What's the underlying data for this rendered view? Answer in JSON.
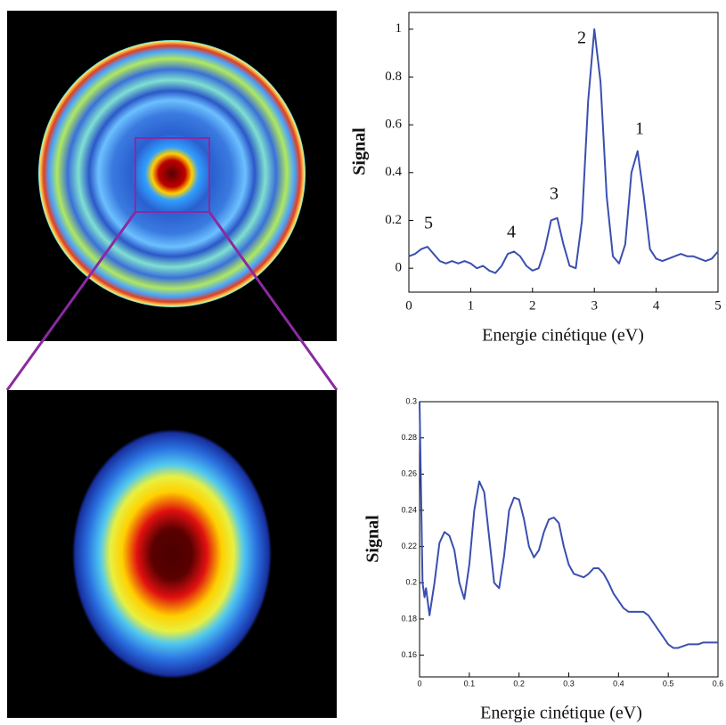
{
  "chart_data": [
    {
      "type": "line",
      "xlabel": "Energie cinétique (eV)",
      "ylabel": "Signal",
      "annotations": [
        "5",
        "4",
        "3",
        "2",
        "1"
      ],
      "x": [
        0,
        0.1,
        0.2,
        0.3,
        0.4,
        0.5,
        0.6,
        0.7,
        0.8,
        0.9,
        1.0,
        1.1,
        1.2,
        1.3,
        1.4,
        1.5,
        1.6,
        1.7,
        1.8,
        1.9,
        2.0,
        2.1,
        2.2,
        2.3,
        2.4,
        2.5,
        2.6,
        2.7,
        2.8,
        2.9,
        3.0,
        3.1,
        3.2,
        3.3,
        3.4,
        3.5,
        3.6,
        3.7,
        3.8,
        3.9,
        4.0,
        4.1,
        4.2,
        4.3,
        4.4,
        4.5,
        4.6,
        4.7,
        4.8,
        4.9,
        5.0
      ],
      "values": [
        0.05,
        0.06,
        0.08,
        0.09,
        0.06,
        0.03,
        0.02,
        0.03,
        0.02,
        0.03,
        0.02,
        0.0,
        0.01,
        -0.01,
        -0.02,
        0.01,
        0.06,
        0.07,
        0.05,
        0.01,
        -0.01,
        0.0,
        0.08,
        0.2,
        0.21,
        0.1,
        0.01,
        0.0,
        0.2,
        0.7,
        1.0,
        0.78,
        0.3,
        0.05,
        0.02,
        0.1,
        0.4,
        0.49,
        0.3,
        0.08,
        0.04,
        0.03,
        0.04,
        0.05,
        0.06,
        0.05,
        0.05,
        0.04,
        0.03,
        0.04,
        0.07
      ],
      "color": "#3a4fb0",
      "xlim": [
        0,
        5
      ],
      "xticks": [
        0,
        1,
        2,
        3,
        4,
        5
      ],
      "ylim": [
        -0.1,
        1.07
      ],
      "yticks": [
        0,
        0.2,
        0.4,
        0.6,
        0.8,
        1
      ]
    },
    {
      "type": "line",
      "xlabel": "Energie cinétique (eV)",
      "ylabel": "Signal",
      "x": [
        0,
        0.003,
        0.006,
        0.01,
        0.013,
        0.02,
        0.03,
        0.04,
        0.05,
        0.06,
        0.07,
        0.08,
        0.09,
        0.1,
        0.11,
        0.12,
        0.13,
        0.14,
        0.15,
        0.16,
        0.17,
        0.18,
        0.19,
        0.2,
        0.21,
        0.22,
        0.23,
        0.24,
        0.25,
        0.26,
        0.27,
        0.28,
        0.29,
        0.3,
        0.31,
        0.32,
        0.33,
        0.34,
        0.35,
        0.36,
        0.37,
        0.38,
        0.39,
        0.4,
        0.41,
        0.42,
        0.43,
        0.44,
        0.45,
        0.46,
        0.47,
        0.48,
        0.49,
        0.5,
        0.51,
        0.52,
        0.53,
        0.54,
        0.55,
        0.56,
        0.57,
        0.58,
        0.59,
        0.6
      ],
      "values": [
        0.3,
        0.25,
        0.2,
        0.192,
        0.197,
        0.182,
        0.2,
        0.222,
        0.228,
        0.226,
        0.218,
        0.2,
        0.191,
        0.21,
        0.24,
        0.256,
        0.25,
        0.225,
        0.2,
        0.197,
        0.215,
        0.24,
        0.247,
        0.246,
        0.235,
        0.22,
        0.214,
        0.218,
        0.228,
        0.235,
        0.236,
        0.233,
        0.22,
        0.21,
        0.205,
        0.204,
        0.203,
        0.205,
        0.208,
        0.208,
        0.205,
        0.2,
        0.194,
        0.19,
        0.186,
        0.184,
        0.184,
        0.184,
        0.184,
        0.182,
        0.178,
        0.174,
        0.17,
        0.166,
        0.164,
        0.164,
        0.165,
        0.166,
        0.166,
        0.166,
        0.167,
        0.167,
        0.167,
        0.167
      ],
      "color": "#3a4fb0",
      "xlim": [
        0,
        0.6
      ],
      "xticks": [
        0,
        0.1,
        0.2,
        0.3,
        0.4,
        0.5,
        0.6
      ],
      "ylim": [
        0.148,
        0.3
      ],
      "yticks": [
        0.16,
        0.18,
        0.2,
        0.22,
        0.24,
        0.26,
        0.28,
        0.3
      ]
    }
  ]
}
